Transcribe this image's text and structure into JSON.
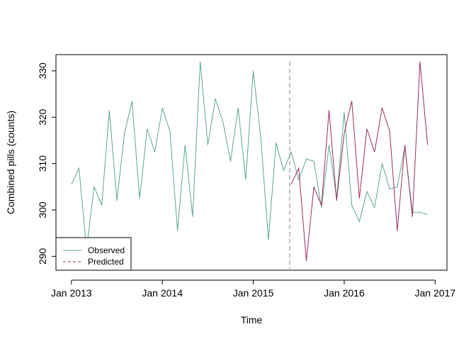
{
  "chart_data": {
    "type": "line",
    "title": "",
    "xlabel": "Time",
    "ylabel": "Combined pills (counts)",
    "xlim": [
      2012.83,
      2017.13
    ],
    "ylim": [
      287,
      333.5
    ],
    "x_ticks": [
      2013,
      2014,
      2015,
      2016,
      2017
    ],
    "x_tick_labels": [
      "Jan 2013",
      "Jan 2014",
      "Jan 2015",
      "Jan 2016",
      "Jan 2017"
    ],
    "y_ticks": [
      290,
      300,
      310,
      320,
      330
    ],
    "y_tick_labels": [
      "290",
      "300",
      "310",
      "320",
      "330"
    ],
    "vline": {
      "x": 2015.4,
      "color": "#bfbfbf",
      "style": "dashed"
    },
    "legend": {
      "position": "bottom-left",
      "entries": [
        "Observed",
        "Predicted"
      ]
    },
    "series": [
      {
        "name": "Observed",
        "color": "#5aa889",
        "style": "solid",
        "x": [
          2013.0,
          2013.0833,
          2013.1667,
          2013.25,
          2013.3333,
          2013.4167,
          2013.5,
          2013.5833,
          2013.6667,
          2013.75,
          2013.8333,
          2013.9167,
          2014.0,
          2014.0833,
          2014.1667,
          2014.25,
          2014.3333,
          2014.4167,
          2014.5,
          2014.5833,
          2014.6667,
          2014.75,
          2014.8333,
          2014.9167,
          2015.0,
          2015.0833,
          2015.1667,
          2015.25,
          2015.3333,
          2015.4167,
          2015.5,
          2015.5833,
          2015.6667,
          2015.75,
          2015.8333,
          2015.9167,
          2016.0,
          2016.0833,
          2016.1667,
          2016.25,
          2016.3333,
          2016.4167,
          2016.5,
          2016.5833,
          2016.6667,
          2016.75,
          2016.8333,
          2016.9167
        ],
        "values": [
          305.5,
          309,
          291.5,
          305,
          301,
          321.5,
          302,
          316.5,
          323.5,
          302.5,
          317.5,
          312.5,
          322,
          317,
          295.5,
          314,
          298.5,
          332,
          314,
          324,
          319,
          310.5,
          322,
          306.5,
          330,
          315.5,
          293.5,
          314.5,
          308.5,
          312.5,
          306.5,
          311,
          310.5,
          300.5,
          314,
          302.5,
          321,
          301,
          297.5,
          304,
          300.5,
          310,
          304.5,
          305,
          313.5,
          299.5,
          299.5,
          299
        ]
      },
      {
        "name": "Predicted",
        "color": "#9c2d63",
        "style": "solid",
        "x": [
          2015.4167,
          2015.5,
          2015.5833,
          2015.6667,
          2015.75,
          2015.8333,
          2015.9167,
          2016.0,
          2016.0833,
          2016.1667,
          2016.25,
          2016.3333,
          2016.4167,
          2016.5,
          2016.5833,
          2016.6667,
          2016.75,
          2016.8333,
          2016.9167
        ],
        "values": [
          305.5,
          309,
          289,
          305,
          301,
          321.5,
          302,
          316.5,
          323.5,
          302.5,
          317.5,
          312.5,
          322,
          317,
          295.5,
          314,
          298.5,
          332,
          314
        ]
      }
    ]
  }
}
